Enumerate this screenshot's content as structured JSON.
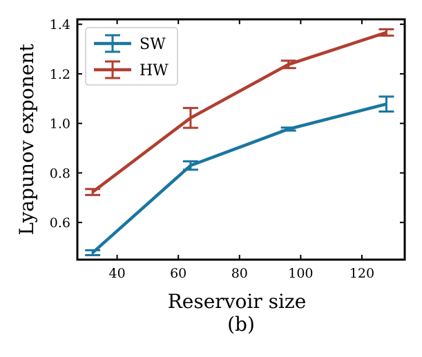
{
  "chart_data": {
    "type": "line",
    "x": [
      32,
      64,
      96,
      128
    ],
    "series": [
      {
        "name": "SW",
        "color": "#1a76a0",
        "values": [
          0.478,
          0.83,
          0.977,
          1.078
        ],
        "errors": [
          0.01,
          0.017,
          0.006,
          0.03
        ]
      },
      {
        "name": "HW",
        "color": "#b03f30",
        "values": [
          0.723,
          1.022,
          1.238,
          1.367
        ],
        "errors": [
          0.012,
          0.04,
          0.015,
          0.013
        ]
      }
    ],
    "xlabel": "Reservoir size",
    "ylabel": "Lyapunov exponent",
    "caption": "(b)",
    "xlim": [
      27,
      134
    ],
    "ylim": [
      0.45,
      1.42
    ],
    "xticks": [
      40,
      60,
      80,
      100,
      120
    ],
    "xtick_labels": [
      "40",
      "60",
      "80",
      "100",
      "120"
    ],
    "yticks": [
      0.6,
      0.8,
      1.0,
      1.2,
      1.4
    ],
    "ytick_labels": [
      "0.6",
      "0.8",
      "1.0",
      "1.2",
      "1.4"
    ],
    "legend_position": "top-left",
    "grid": false
  }
}
